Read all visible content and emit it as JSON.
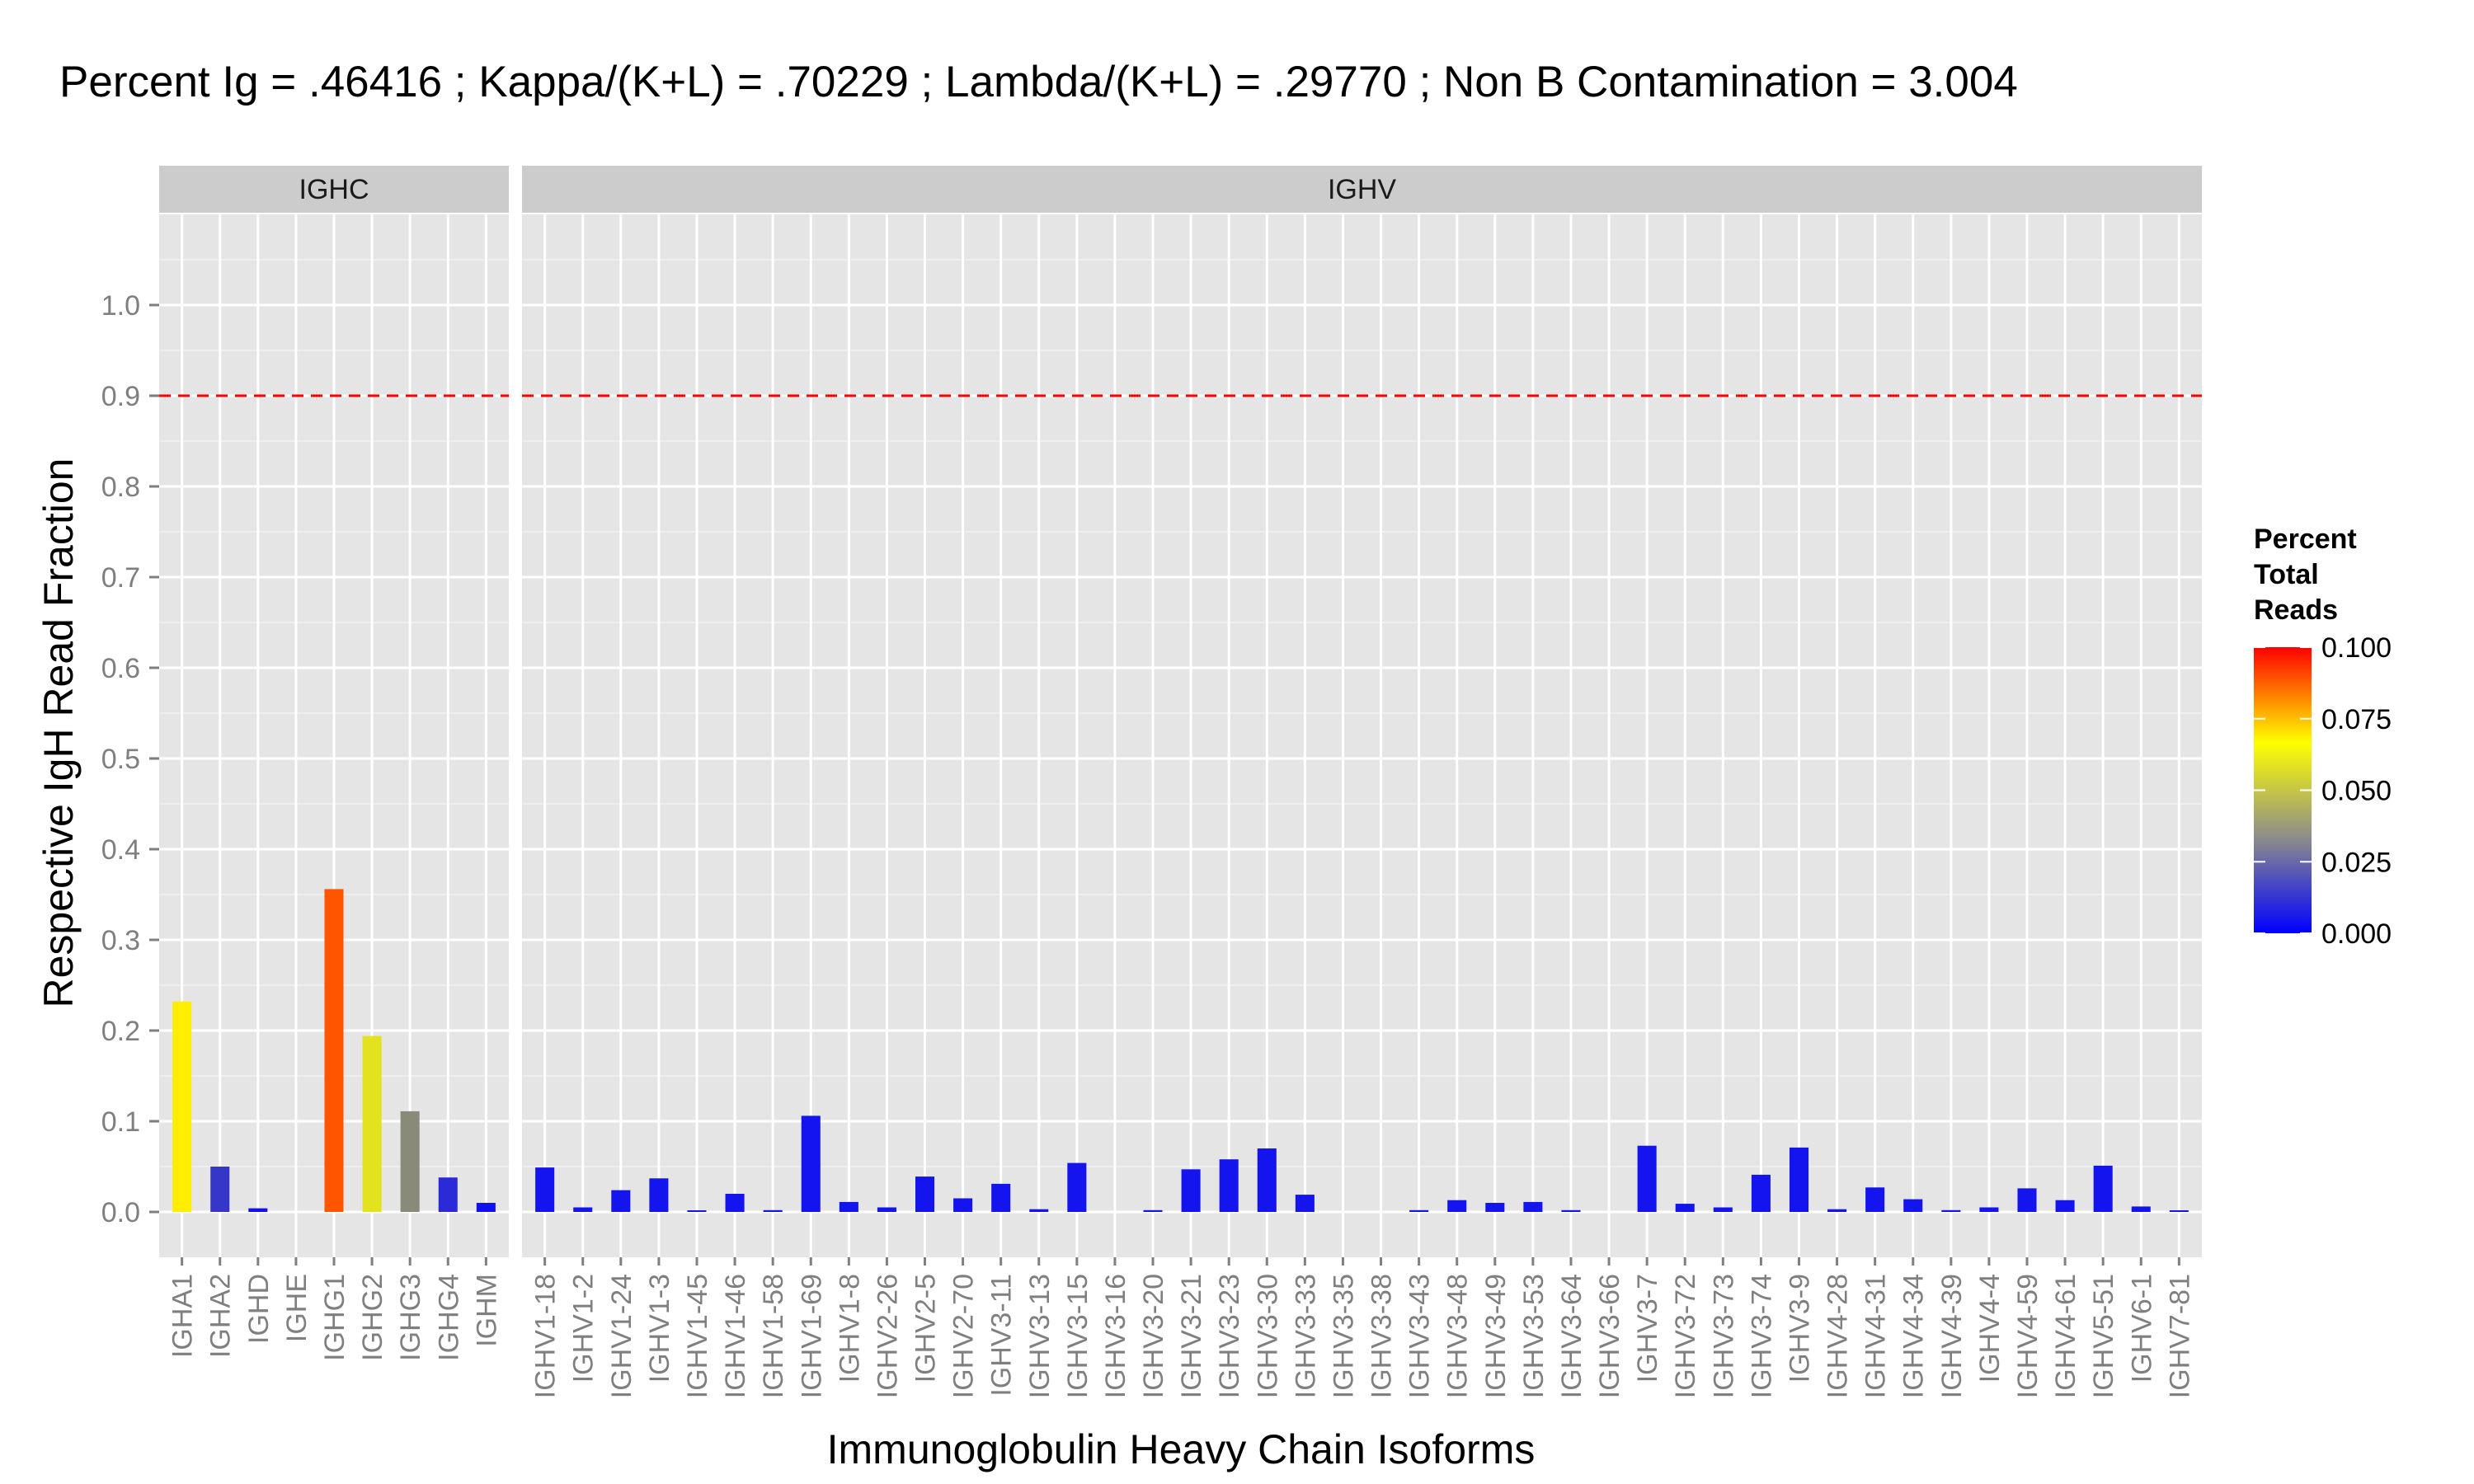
{
  "chart_data": {
    "type": "bar",
    "title": "Percent Ig = .46416 ; Kappa/(K+L) = .70229 ; Lambda/(K+L) = .29770 ; Non B Contamination = 3.004",
    "xlabel": "Immunoglobulin Heavy Chain Isoforms",
    "ylabel": "Respective IgH Read Fraction",
    "ylim": [
      -0.05,
      1.1
    ],
    "yticks": [
      "0.0",
      "0.1",
      "0.2",
      "0.3",
      "0.4",
      "0.5",
      "0.6",
      "0.7",
      "0.8",
      "0.9",
      "1.0"
    ],
    "grid": true,
    "reference_line": {
      "y": 0.9,
      "color": "#ff0000",
      "style": "dashed"
    },
    "legend": {
      "title": "Percent Total Reads",
      "title_lines": [
        "Percent",
        "Total",
        "Reads"
      ],
      "position": "right",
      "ticks": [
        "0.000",
        "0.025",
        "0.050",
        "0.075",
        "0.100"
      ],
      "range": [
        0,
        0.1
      ],
      "colors": [
        "#0000ff",
        "#8c8c8c",
        "#ffff00",
        "#ff0000"
      ]
    },
    "panels": [
      {
        "strip": "IGHC",
        "categories": [
          "IGHA1",
          "IGHA2",
          "IGHD",
          "IGHE",
          "IGHG1",
          "IGHG2",
          "IGHG3",
          "IGHG4",
          "IGHM"
        ],
        "values": [
          0.232,
          0.05,
          0.004,
          0.0,
          0.356,
          0.194,
          0.111,
          0.038,
          0.01
        ],
        "colors": [
          "#ffee00",
          "#3636c8",
          "#1212f0",
          "#0000ff",
          "#ff5500",
          "#e2e21e",
          "#8a8a7a",
          "#2a2ad8",
          "#1010f0"
        ]
      },
      {
        "strip": "IGHV",
        "categories": [
          "IGHV1-18",
          "IGHV1-2",
          "IGHV1-24",
          "IGHV1-3",
          "IGHV1-45",
          "IGHV1-46",
          "IGHV1-58",
          "IGHV1-69",
          "IGHV1-8",
          "IGHV2-26",
          "IGHV2-5",
          "IGHV2-70",
          "IGHV3-11",
          "IGHV3-13",
          "IGHV3-15",
          "IGHV3-16",
          "IGHV3-20",
          "IGHV3-21",
          "IGHV3-23",
          "IGHV3-30",
          "IGHV3-33",
          "IGHV3-35",
          "IGHV3-38",
          "IGHV3-43",
          "IGHV3-48",
          "IGHV3-49",
          "IGHV3-53",
          "IGHV3-64",
          "IGHV3-66",
          "IGHV3-7",
          "IGHV3-72",
          "IGHV3-73",
          "IGHV3-74",
          "IGHV3-9",
          "IGHV4-28",
          "IGHV4-31",
          "IGHV4-34",
          "IGHV4-39",
          "IGHV4-4",
          "IGHV4-59",
          "IGHV4-61",
          "IGHV5-51",
          "IGHV6-1",
          "IGHV7-81"
        ],
        "values": [
          0.049,
          0.005,
          0.024,
          0.037,
          0.001,
          0.02,
          0.002,
          0.106,
          0.011,
          0.005,
          0.039,
          0.015,
          0.031,
          0.003,
          0.054,
          0.0,
          0.002,
          0.047,
          0.058,
          0.07,
          0.019,
          0.0,
          0.0,
          0.002,
          0.013,
          0.01,
          0.011,
          0.002,
          0.0,
          0.073,
          0.009,
          0.005,
          0.041,
          0.071,
          0.003,
          0.027,
          0.014,
          0.002,
          0.005,
          0.026,
          0.013,
          0.051,
          0.006,
          0.001
        ],
        "color": "#1414ee"
      }
    ]
  }
}
